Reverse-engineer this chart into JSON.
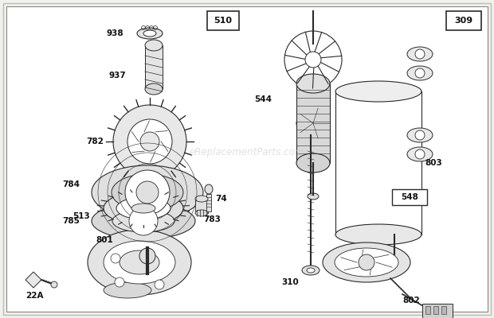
{
  "bg_color": "#f0f0ec",
  "line_color": "#2a2a2a",
  "label_color": "#111111",
  "watermark": "eReplacementParts.com",
  "fig_w": 6.2,
  "fig_h": 4.0,
  "dpi": 100
}
